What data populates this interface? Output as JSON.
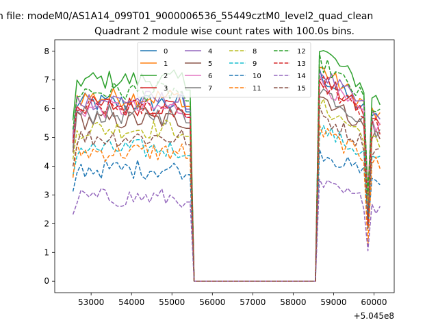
{
  "figure": {
    "suptitle": "n file: modeM0/AS1A14_099T01_9000006536_55449cztM0_level2_quad_clean",
    "offset_label": "+5.045e8"
  },
  "chart_data": {
    "type": "line",
    "title": "Quadrant 2 module wise count rates with 100.0s bins.",
    "xlabel": "",
    "ylabel": "",
    "x_offset": 504500000,
    "xlim": [
      52100,
      60500
    ],
    "ylim": [
      -0.4,
      8.4
    ],
    "xticks": [
      53000,
      54000,
      55000,
      56000,
      57000,
      58000,
      59000,
      60000
    ],
    "yticks": [
      0,
      1,
      2,
      3,
      4,
      5,
      6,
      7,
      8
    ],
    "grid": false,
    "legend_placement": "top-center",
    "segments": [
      [
        52550,
        55450
      ],
      [
        58550,
        60200
      ]
    ],
    "series": [
      {
        "name": "0",
        "color": "#1f77b4",
        "dash": "solid",
        "level": 6.2
      },
      {
        "name": "1",
        "color": "#ff7f0e",
        "dash": "solid",
        "level": 6.4
      },
      {
        "name": "2",
        "color": "#2ca02c",
        "dash": "solid",
        "level": 7.0
      },
      {
        "name": "3",
        "color": "#d62728",
        "dash": "solid",
        "level": 6.1
      },
      {
        "name": "4",
        "color": "#9467bd",
        "dash": "solid",
        "level": 6.3
      },
      {
        "name": "5",
        "color": "#8c564b",
        "dash": "solid",
        "level": 5.6
      },
      {
        "name": "6",
        "color": "#e377c2",
        "dash": "solid",
        "level": 6.0
      },
      {
        "name": "7",
        "color": "#7f7f7f",
        "dash": "solid",
        "level": 5.8
      },
      {
        "name": "8",
        "color": "#bcbd22",
        "dash": "dashed",
        "level": 5.3
      },
      {
        "name": "9",
        "color": "#17becf",
        "dash": "dashed",
        "level": 4.6
      },
      {
        "name": "10",
        "color": "#1f77b4",
        "dash": "dashed",
        "level": 3.9
      },
      {
        "name": "11",
        "color": "#ff7f0e",
        "dash": "dashed",
        "level": 4.5
      },
      {
        "name": "12",
        "color": "#2ca02c",
        "dash": "dashed",
        "level": 6.6
      },
      {
        "name": "13",
        "color": "#d62728",
        "dash": "dashed",
        "level": 6.0
      },
      {
        "name": "14",
        "color": "#9467bd",
        "dash": "dashed",
        "level": 2.9
      },
      {
        "name": "15",
        "color": "#8c564b",
        "dash": "dashed",
        "level": 5.0
      }
    ]
  }
}
